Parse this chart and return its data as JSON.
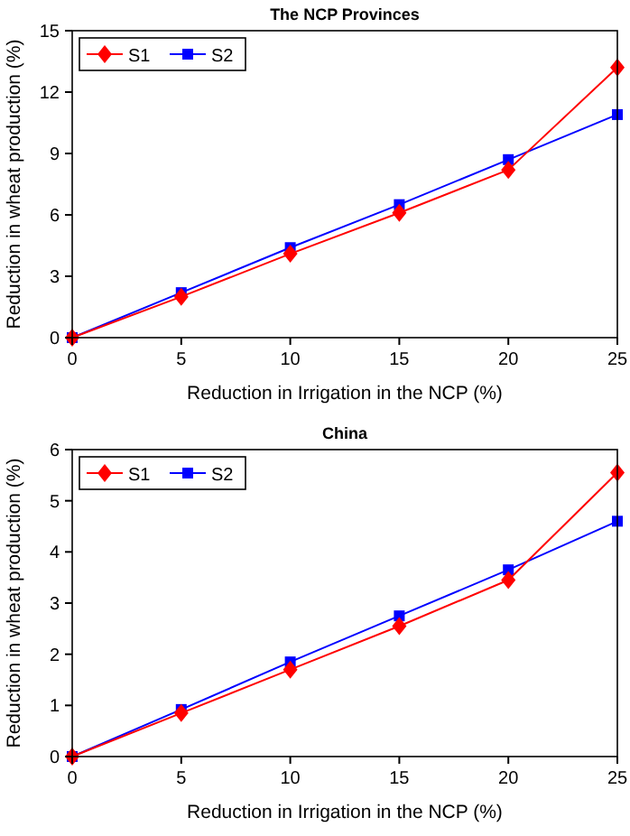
{
  "chart_data": [
    {
      "type": "line",
      "title": "The NCP Provinces",
      "xlabel": "Reduction in Irrigation in the NCP (%)",
      "ylabel": "Reduction in wheat production (%)",
      "x": [
        0,
        5,
        10,
        15,
        20,
        25
      ],
      "xlim": [
        0,
        25
      ],
      "xticks": [
        0,
        5,
        10,
        15,
        20,
        25
      ],
      "ylim": [
        0,
        15
      ],
      "yticks": [
        0,
        3,
        6,
        9,
        12,
        15
      ],
      "legend": "top left",
      "grid": false,
      "series": [
        {
          "name": "S1",
          "color": "#ff0000",
          "marker": "diamond",
          "values": [
            0,
            2.0,
            4.1,
            6.1,
            8.2,
            13.2
          ]
        },
        {
          "name": "S2",
          "color": "#0000ff",
          "marker": "square",
          "values": [
            0,
            2.2,
            4.4,
            6.5,
            8.7,
            10.9
          ]
        }
      ]
    },
    {
      "type": "line",
      "title": "China",
      "xlabel": "Reduction in Irrigation in the NCP (%)",
      "ylabel": "Reduction in wheat production (%)",
      "x": [
        0,
        5,
        10,
        15,
        20,
        25
      ],
      "xlim": [
        0,
        25
      ],
      "xticks": [
        0,
        5,
        10,
        15,
        20,
        25
      ],
      "ylim": [
        0,
        6
      ],
      "yticks": [
        0,
        1,
        2,
        3,
        4,
        5,
        6
      ],
      "legend": "top left",
      "grid": false,
      "series": [
        {
          "name": "S1",
          "color": "#ff0000",
          "marker": "diamond",
          "values": [
            0,
            0.85,
            1.7,
            2.55,
            3.45,
            5.55
          ]
        },
        {
          "name": "S2",
          "color": "#0000ff",
          "marker": "square",
          "values": [
            0,
            0.92,
            1.85,
            2.75,
            3.65,
            4.6
          ]
        }
      ]
    }
  ]
}
